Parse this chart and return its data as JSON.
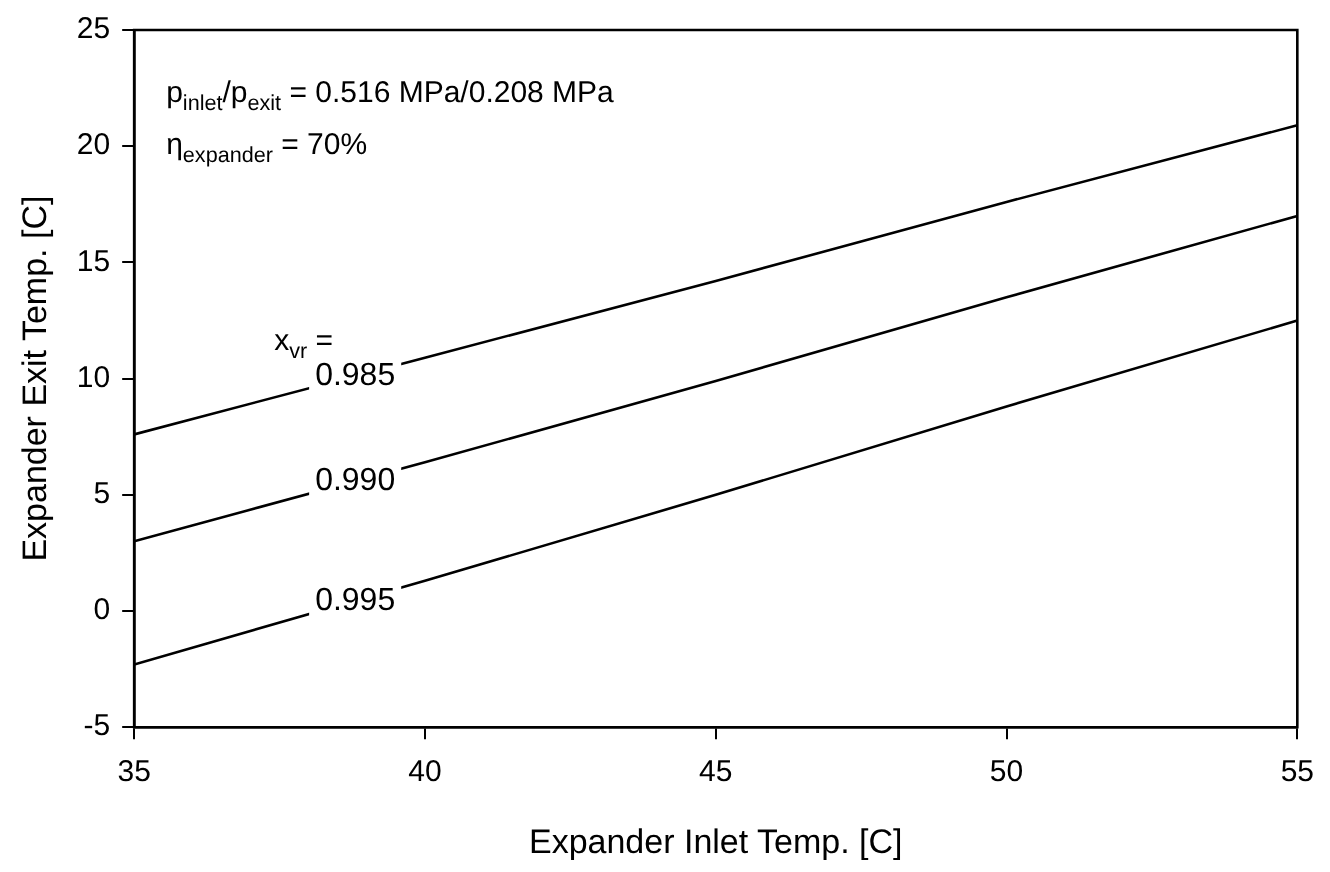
{
  "chart_data": {
    "type": "line",
    "xlabel": "Expander Inlet Temp. [C]",
    "ylabel": "Expander Exit Temp. [C]",
    "x": [
      35,
      40,
      45,
      50,
      55
    ],
    "series": [
      {
        "name": "0.985",
        "color": "#000000",
        "values": [
          7.6,
          10.9,
          14.2,
          17.6,
          20.9
        ]
      },
      {
        "name": "0.990",
        "color": "#000000",
        "values": [
          3.0,
          6.4,
          9.9,
          13.5,
          17.0
        ]
      },
      {
        "name": "0.995",
        "color": "#000000",
        "values": [
          -2.3,
          1.3,
          5.0,
          8.8,
          12.5
        ]
      }
    ],
    "xlim": [
      35,
      55
    ],
    "xticks": [
      35,
      40,
      45,
      50,
      55
    ],
    "ylim": [
      -5,
      25
    ],
    "yticks": [
      -5,
      0,
      5,
      10,
      15,
      20,
      25
    ],
    "grid": false,
    "legend": false,
    "marker": "none",
    "line_style": "solid",
    "annotations": [
      "p$_{inlet}$/p$_{exit}$ = 0.516 MPa/0.208 MPa",
      "η$_{expander}$ = 70%",
      "x$_{vr}$ ="
    ]
  }
}
